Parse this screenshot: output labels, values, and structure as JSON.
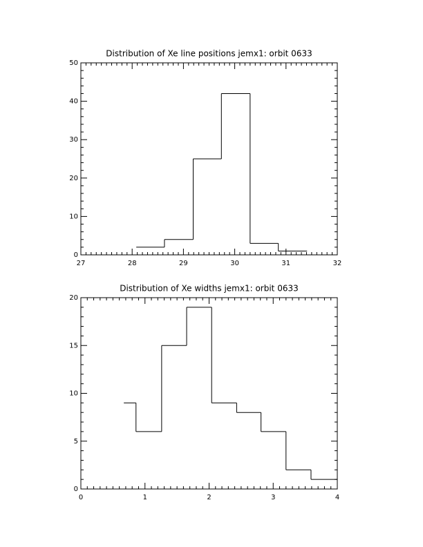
{
  "chart_data": [
    {
      "type": "histogram",
      "title": "Distribution of Xe line positions jemx1: orbit 0633",
      "bins": [
        28.08,
        28.63,
        29.19,
        29.74,
        30.3,
        30.85,
        31.41
      ],
      "values": [
        2,
        4,
        25,
        42,
        3,
        1
      ],
      "xlim": [
        27,
        32
      ],
      "xticks": [
        27,
        28,
        29,
        30,
        31,
        32
      ],
      "ylim": [
        0,
        50
      ],
      "yticks": [
        0,
        10,
        20,
        30,
        40,
        50
      ],
      "color": "#000000"
    },
    {
      "type": "histogram",
      "title": "Distribution of Xe widths jemx1: orbit 0633",
      "bins": [
        0.67,
        0.86,
        1.26,
        1.65,
        2.04,
        2.43,
        2.81,
        3.2,
        3.59,
        4.0
      ],
      "values": [
        9,
        6,
        15,
        19,
        9,
        8,
        6,
        2,
        1
      ],
      "xlim": [
        0,
        4
      ],
      "xticks": [
        0,
        1,
        2,
        3,
        4
      ],
      "ylim": [
        0,
        20
      ],
      "yticks": [
        0,
        5,
        10,
        15,
        20
      ],
      "color": "#000000"
    }
  ]
}
